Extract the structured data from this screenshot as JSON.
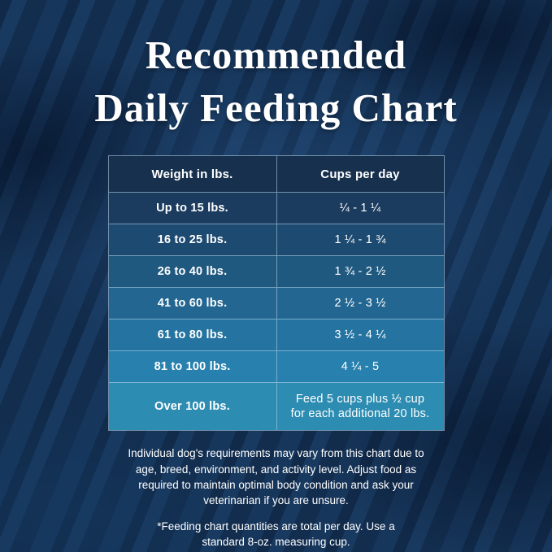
{
  "title": {
    "line1": "Recommended",
    "line2": "Daily Feeding Chart"
  },
  "table": {
    "header_bg": "#17304e",
    "headers": [
      "Weight in lbs.",
      "Cups per day"
    ],
    "rows": [
      {
        "weight": "Up to 15 lbs.",
        "cups": "¼ - 1 ¼",
        "bg": "#1b3c5f"
      },
      {
        "weight": "16 to 25 lbs.",
        "cups": "1 ¼ - 1 ¾",
        "bg": "#1d4a70"
      },
      {
        "weight": "26 to 40 lbs.",
        "cups": "1 ¾ - 2 ½",
        "bg": "#205980"
      },
      {
        "weight": "41 to 60 lbs.",
        "cups": "2 ½ - 3 ½",
        "bg": "#226691"
      },
      {
        "weight": "61 to 80 lbs.",
        "cups": "3 ½ - 4 ¼",
        "bg": "#2473a0"
      },
      {
        "weight": "81 to 100 lbs.",
        "cups": "4 ¼ - 5",
        "bg": "#2780ae"
      },
      {
        "weight": "Over 100 lbs.",
        "cups": "Feed 5 cups plus ½ cup for each additional 20 lbs.",
        "bg": "#2d8cb2"
      }
    ]
  },
  "notes": {
    "disclaimer": "Individual dog's requirements may vary from this chart due to age, breed, environment, and activity level. Adjust food as required to maintain optimal body condition and ask your veterinarian if you are unsure.",
    "footnote": "*Feeding chart quantities are total per day. Use a standard 8-oz. measuring cup."
  },
  "colors": {
    "background": "#16355a",
    "text": "#ffffff",
    "table_border": "rgba(190,215,235,0.55)"
  },
  "chart_data": {
    "type": "table",
    "title": "Recommended Daily Feeding Chart",
    "columns": [
      "Weight in lbs.",
      "Cups per day"
    ],
    "rows": [
      [
        "Up to 15 lbs.",
        "¼ - 1 ¼"
      ],
      [
        "16 to 25 lbs.",
        "1 ¼ - 1 ¾"
      ],
      [
        "26 to 40 lbs.",
        "1 ¾ - 2 ½"
      ],
      [
        "41 to 60 lbs.",
        "2 ½ - 3 ½"
      ],
      [
        "61 to 80 lbs.",
        "3 ½ - 4 ¼"
      ],
      [
        "81 to 100 lbs.",
        "4 ¼ - 5"
      ],
      [
        "Over 100 lbs.",
        "Feed 5 cups plus ½ cup for each additional 20 lbs."
      ]
    ],
    "notes": [
      "Individual dog's requirements may vary from this chart due to age, breed, environment, and activity level. Adjust food as required to maintain optimal body condition and ask your veterinarian if you are unsure.",
      "*Feeding chart quantities are total per day. Use a standard 8-oz. measuring cup."
    ]
  }
}
